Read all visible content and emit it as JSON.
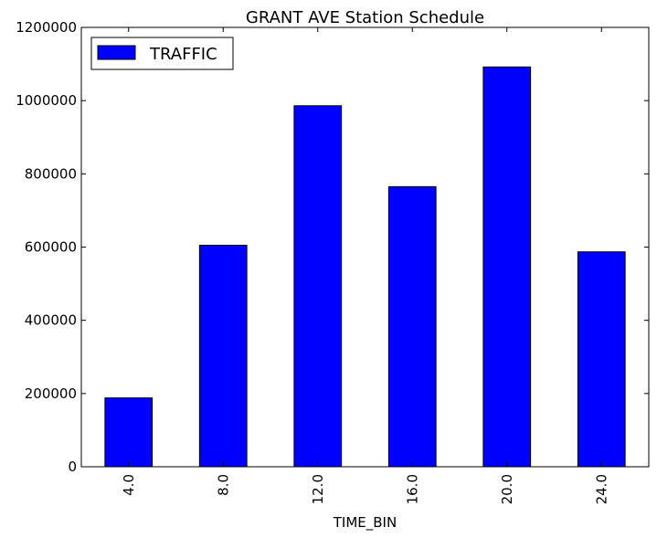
{
  "chart_data": {
    "type": "bar",
    "title": "GRANT AVE Station Schedule",
    "xlabel": "TIME_BIN",
    "ylabel": "",
    "categories": [
      "4.0",
      "8.0",
      "12.0",
      "16.0",
      "20.0",
      "24.0"
    ],
    "series": [
      {
        "name": "TRAFFIC",
        "values": [
          188000,
          605000,
          986000,
          765000,
          1092000,
          587000
        ]
      }
    ],
    "ylim": [
      0,
      1200000
    ],
    "yticks": [
      "0",
      "200000",
      "400000",
      "600000",
      "800000",
      "1000000",
      "1200000"
    ],
    "y_tick_values": [
      0,
      200000,
      400000,
      600000,
      800000,
      1000000,
      1200000
    ],
    "grid": false,
    "legend_position": "top-left",
    "colors": {
      "bar_fill": "#0000ff",
      "bar_edge": "#000000",
      "axes": "#000000",
      "background": "#ffffff"
    }
  }
}
